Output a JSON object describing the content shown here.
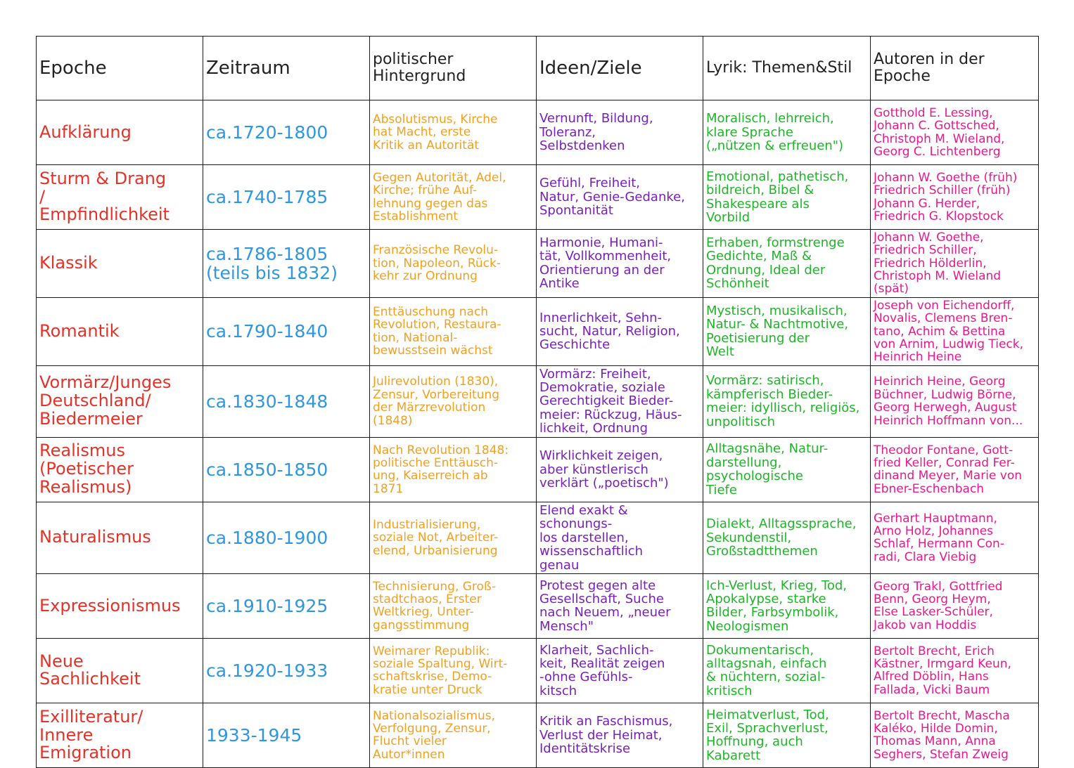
{
  "colors": {
    "epoch": "#e53228",
    "period": "#2e97e0",
    "political": "#f2a01f",
    "ideas": "#7a1fb8",
    "lyric": "#1fb528",
    "authors": "#e8188f",
    "grid": "#1a1a1a"
  },
  "headers": {
    "epoch": "Epoche",
    "period": "Zeitraum",
    "political": "politischer\nHintergrund",
    "ideas": "Ideen/Ziele",
    "lyric": "Lyrik:\nThemen&Stil",
    "authors": "Autoren in der\nEpoche"
  },
  "rows": [
    {
      "epoch": "Aufklärung",
      "period": "ca.1720-1800",
      "political": "Absolutismus, Kirche\nhat Macht, erste\nKritik an Autorität",
      "ideas": "Vernunft, Bildung,\nToleranz,\nSelbstdenken",
      "lyric": "Moralisch, lehrreich,\nklare Sprache\n(„nützen & erfreuen\")",
      "authors": "Gotthold E. Lessing,\nJohann C. Gottsched,\nChristoph M. Wieland,\nGeorg C. Lichtenberg"
    },
    {
      "epoch": "Sturm & Drang\n/\nEmpfindlichkeit",
      "period": "ca.1740-1785",
      "political": "Gegen Autorität, Adel,\nKirche; frühe Auf-\nlehnung gegen das\nEstablishment",
      "ideas": "Gefühl, Freiheit,\nNatur, Genie-Gedanke,\nSpontanität",
      "lyric": "Emotional, pathetisch,\nbildreich, Bibel &\nShakespeare als\nVorbild",
      "authors": "Johann W. Goethe (früh)\nFriedrich Schiller (früh)\nJohann G. Herder,\nFriedrich G. Klopstock"
    },
    {
      "epoch": "Klassik",
      "period": "ca.1786-1805\n(teils bis 1832)",
      "political": "Französische Revolu-\ntion, Napoleon, Rück-\nkehr zur Ordnung",
      "ideas": "Harmonie, Humani-\ntät, Vollkommenheit,\nOrientierung an der\nAntike",
      "lyric": "Erhaben, formstrenge\nGedichte, Maß &\nOrdnung, Ideal der\nSchönheit",
      "authors": "Johann W. Goethe,\nFriedrich Schiller,\nFriedrich Hölderlin,\nChristoph M. Wieland (spät)"
    },
    {
      "epoch": "Romantik",
      "period": "ca.1790-1840",
      "political": "Enttäuschung nach\nRevolution, Restaura-\ntion, National-\nbewusstsein wächst",
      "ideas": "Innerlichkeit, Sehn-\nsucht, Natur, Religion,\nGeschichte",
      "lyric": "Mystisch, musikalisch,\nNatur- & Nachtmotive,\nPoetisierung der\nWelt",
      "authors": "Joseph von Eichendorff,\nNovalis, Clemens Bren-\ntano, Achim & Bettina\nvon Arnim, Ludwig Tieck,\nHeinrich Heine"
    },
    {
      "epoch": "Vormärz/Junges\nDeutschland/\nBiedermeier",
      "period": "ca.1830-1848",
      "political": "Julirevolution (1830),\nZensur, Vorbereitung\nder Märzrevolution\n(1848)",
      "ideas": "Vormärz: Freiheit,\nDemokratie, soziale\nGerechtigkeit Bieder-\nmeier: Rückzug, Häus-\nlichkeit, Ordnung",
      "lyric": "Vormärz: satirisch,\nkämpferisch Bieder-\nmeier: idyllisch, religiös,\nunpolitisch",
      "authors": "Heinrich Heine, Georg\nBüchner, Ludwig Börne,\nGeorg Herwegh, August\nHeinrich Hoffmann von..."
    },
    {
      "epoch": "Realismus\n(Poetischer\nRealismus)",
      "period": "ca.1850-1850",
      "political": "Nach Revolution 1848:\npolitische Enttäusch-\nung, Kaiserreich ab\n1871",
      "ideas": "Wirklichkeit zeigen,\naber künstlerisch\nverklärt („poetisch\")",
      "lyric": "Alltagsnähe, Natur-\ndarstellung,\npsychologische\nTiefe",
      "authors": "Theodor Fontane, Gott-\nfried Keller, Conrad Fer-\ndinand Meyer, Marie von\nEbner-Eschenbach"
    },
    {
      "epoch": "Naturalismus",
      "period": "ca.1880-1900",
      "political": "Industrialisierung,\nsoziale Not, Arbeiter-\nelend, Urbanisierung",
      "ideas": "Elend exakt & schonungs-\nlos darstellen,\nwissenschaftlich\ngenau",
      "lyric": "Dialekt, Alltagssprache,\nSekundenstil,\nGroßstadtthemen",
      "authors": "Gerhart Hauptmann,\nArno Holz, Johannes\nSchlaf, Hermann Con-\nradi, Clara Viebig"
    },
    {
      "epoch": "Expressionismus",
      "period": "ca.1910-1925",
      "political": "Technisierung, Groß-\nstadtchaos, Erster\nWeltkrieg, Unter-\ngangsstimmung",
      "ideas": "Protest gegen alte\nGesellschaft, Suche\nnach Neuem, „neuer\nMensch\"",
      "lyric": "Ich-Verlust, Krieg, Tod,\nApokalypse, starke\nBilder, Farbsymbolik,\nNeologismen",
      "authors": "Georg Trakl, Gottfried\nBenn, Georg Heym,\nElse Lasker-Schüler,\nJakob van Hoddis"
    },
    {
      "epoch": "Neue\nSachlichkeit",
      "period": "ca.1920-1933",
      "political": "Weimarer Republik:\nsoziale Spaltung, Wirt-\nschaftskrise, Demo-\nkratie unter Druck",
      "ideas": "Klarheit, Sachlich-\nkeit, Realität zeigen\n-ohne Gefühls-\nkitsch",
      "lyric": "Dokumentarisch,\nalltagsnah, einfach\n& nüchtern, sozial-\nkritisch",
      "authors": "Bertolt Brecht, Erich\nKästner, Irmgard Keun,\nAlfred Döblin, Hans\nFallada, Vicki Baum"
    },
    {
      "epoch": "Exilliteratur/\nInnere\nEmigration",
      "period": "1933-1945",
      "political": "Nationalsozialismus,\nVerfolgung, Zensur,\nFlucht vieler\nAutor*innen",
      "ideas": "Kritik an Faschismus,\nVerlust der Heimat,\nIdentitätskrise",
      "lyric": "Heimatverlust, Tod,\nExil, Sprachverlust,\nHoffnung, auch\nKabarett",
      "authors": "Bertolt Brecht, Mascha\nKaléko, Hilde Domin,\nThomas Mann, Anna\nSeghers, Stefan Zweig"
    }
  ]
}
